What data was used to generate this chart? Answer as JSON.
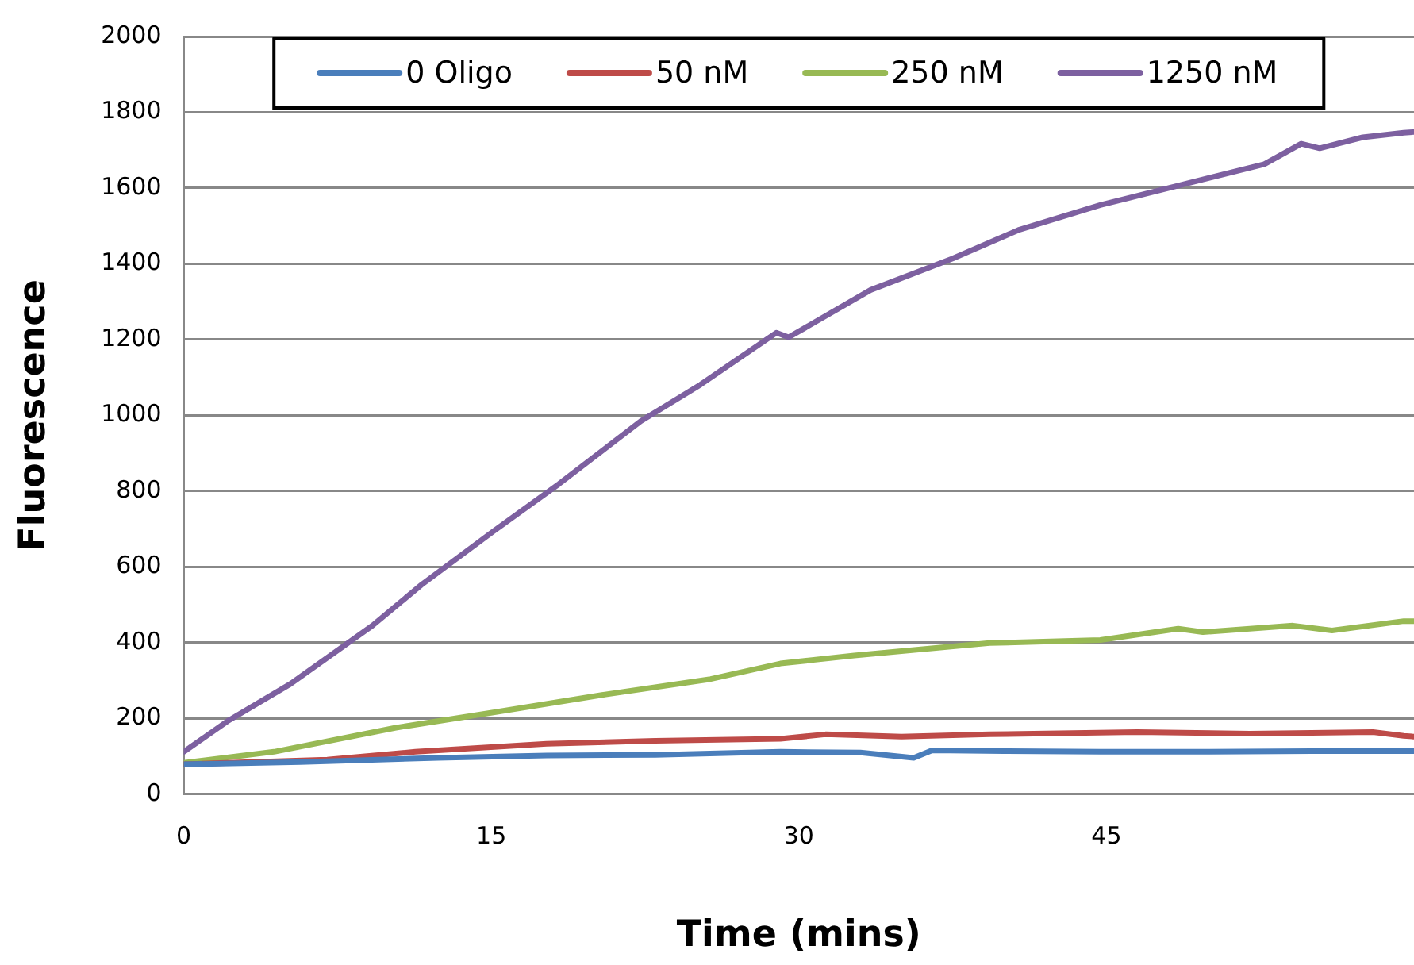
{
  "chart_data": {
    "type": "line",
    "xlabel": "Time (mins)",
    "ylabel": "Fluorescence",
    "xlim": [
      0,
      60
    ],
    "xticks": [
      0,
      15,
      30,
      45
    ],
    "ylim": [
      0,
      2000
    ],
    "yticks": [
      0,
      200,
      400,
      600,
      800,
      1000,
      1200,
      1400,
      1600,
      1800,
      2000
    ],
    "grid": "y",
    "legend": "top",
    "marker": "none",
    "line_style": "solid",
    "series": [
      {
        "name": "0 Oligo",
        "color": "#4a7ebb",
        "x": [
          0,
          5.7,
          12.4,
          17.7,
          23,
          29.1,
          33,
          35.6,
          36.5,
          40,
          44.7,
          50,
          55,
          59.5,
          60
        ],
        "values": [
          79,
          85,
          96,
          102,
          104,
          112,
          110,
          96,
          116,
          114,
          112,
          112,
          114,
          114,
          114
        ]
      },
      {
        "name": "50 nM",
        "color": "#be4b48",
        "x": [
          0,
          7,
          11.3,
          17.7,
          23,
          29.1,
          31.3,
          35,
          39.3,
          46.5,
          52,
          58,
          59.5,
          60
        ],
        "values": [
          79,
          91,
          112,
          133,
          141,
          146,
          158,
          152,
          158,
          164,
          160,
          164,
          154,
          152
        ]
      },
      {
        "name": "250 nM",
        "color": "#98b954",
        "x": [
          0,
          4.4,
          10.3,
          15.1,
          20.4,
          25.7,
          29.1,
          32.7,
          39.3,
          44.7,
          48.5,
          49.7,
          54.1,
          56,
          59.5,
          60
        ],
        "values": [
          83,
          112,
          175,
          216,
          262,
          304,
          345,
          366,
          399,
          407,
          437,
          428,
          445,
          432,
          457,
          457
        ]
      },
      {
        "name": "1250 nM",
        "color": "#7d60a0",
        "x": [
          0,
          2.2,
          5.2,
          9.2,
          11.6,
          15.1,
          18.3,
          22.3,
          25.2,
          28.9,
          29.5,
          33.5,
          37.5,
          40.7,
          44.7,
          48.7,
          52.7,
          54.5,
          55.4,
          57.5,
          59.5,
          60
        ],
        "values": [
          112,
          195,
          291,
          445,
          553,
          694,
          819,
          985,
          1081,
          1218,
          1206,
          1331,
          1414,
          1489,
          1555,
          1609,
          1663,
          1717,
          1705,
          1734,
          1746,
          1748
        ]
      }
    ]
  }
}
